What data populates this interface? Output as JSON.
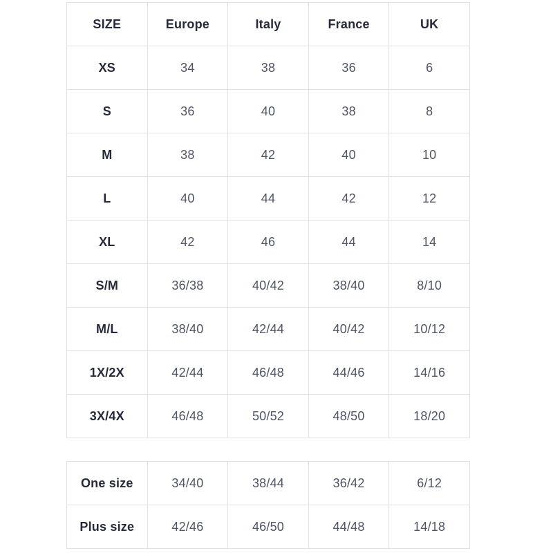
{
  "table_main": {
    "columns": [
      "SIZE",
      "Europe",
      "Italy",
      "France",
      "UK"
    ],
    "rows": [
      {
        "size": "XS",
        "values": [
          "34",
          "38",
          "36",
          "6"
        ]
      },
      {
        "size": "S",
        "values": [
          "36",
          "40",
          "38",
          "8"
        ]
      },
      {
        "size": "M",
        "values": [
          "38",
          "42",
          "40",
          "10"
        ]
      },
      {
        "size": "L",
        "values": [
          "40",
          "44",
          "42",
          "12"
        ]
      },
      {
        "size": "XL",
        "values": [
          "42",
          "46",
          "44",
          "14"
        ]
      },
      {
        "size": "S/M",
        "values": [
          "36/38",
          "40/42",
          "38/40",
          "8/10"
        ]
      },
      {
        "size": "M/L",
        "values": [
          "38/40",
          "42/44",
          "40/42",
          "10/12"
        ]
      },
      {
        "size": "1X/2X",
        "values": [
          "42/44",
          "46/48",
          "44/46",
          "14/16"
        ]
      },
      {
        "size": "3X/4X",
        "values": [
          "46/48",
          "50/52",
          "48/50",
          "18/20"
        ]
      }
    ]
  },
  "table_special": {
    "rows": [
      {
        "size": "One size",
        "values": [
          "34/40",
          "38/44",
          "36/42",
          "6/12"
        ]
      },
      {
        "size": "Plus size",
        "values": [
          "42/46",
          "46/50",
          "44/48",
          "14/18"
        ]
      }
    ]
  },
  "colors": {
    "background": "#ffffff",
    "border": "#e0e0e0",
    "header_text": "#252a3a",
    "value_text": "#4e5565"
  }
}
